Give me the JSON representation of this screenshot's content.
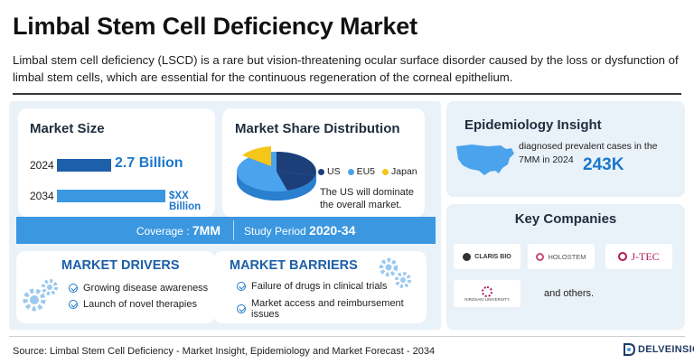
{
  "title": "Limbal Stem Cell Deficiency Market",
  "description": "Limbal stem cell deficiency (LSCD) is a rare but vision-threatening ocular surface disorder caused by the loss or dysfunction of limbal stem cells, which are essential for the continuous regeneration of the corneal epithelium.",
  "market_size": {
    "heading": "Market Size",
    "rows": [
      {
        "year": "2024",
        "value": "2.7 Billion"
      },
      {
        "year": "2034",
        "value": "$XX Billion"
      }
    ]
  },
  "market_share": {
    "heading": "Market Share Distribution",
    "legend": [
      "US",
      "EU5",
      "Japan"
    ],
    "note": "The US will dominate the overall market.",
    "colors": {
      "us": "#1c3f7a",
      "eu5": "#4aa3ec",
      "japan": "#f5c518"
    }
  },
  "coverage": {
    "label": "Coverage : ",
    "value": "7MM",
    "study_label": "Study Period ",
    "study_value": "2020-34"
  },
  "drivers": {
    "heading": "MARKET DRIVERS",
    "items": [
      "Growing disease awareness",
      "Launch of novel therapies"
    ]
  },
  "barriers": {
    "heading": "MARKET BARRIERS",
    "items": [
      "Failure of drugs in clinical trials",
      "Market access and reimbursement issues"
    ]
  },
  "epidemiology": {
    "heading": "Epidemiology Insight",
    "text": "diagnosed prevalent cases in the 7MM in 2024",
    "value": "243K"
  },
  "key_companies": {
    "heading": "Key Companies",
    "logos": [
      "CLARIS BIO",
      "HOLOSTEM",
      "J-TEC",
      "HIROSAKI UNIVERSITY"
    ],
    "others": "and others."
  },
  "source": "Source: Limbal Stem Cell Deficiency - Market Insight, Epidemiology and Market Forecast - 2034",
  "brand": "DELVEINSIGHT",
  "accent_colors": {
    "primary": "#1b78cc",
    "dark_navy": "#1c3f7a",
    "panel": "#e9f1f9"
  }
}
